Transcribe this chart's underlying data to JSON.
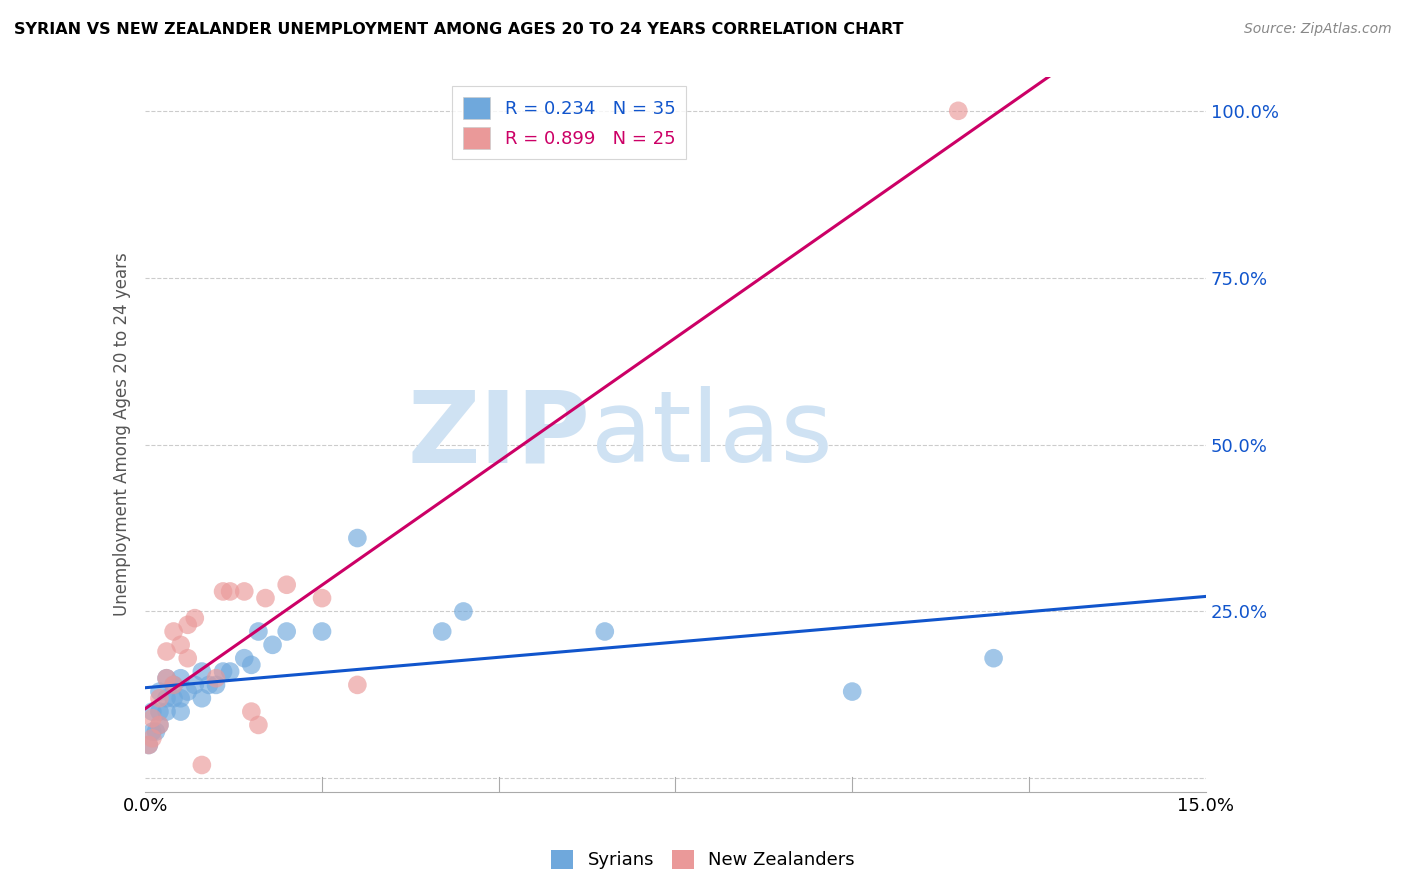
{
  "title": "SYRIAN VS NEW ZEALANDER UNEMPLOYMENT AMONG AGES 20 TO 24 YEARS CORRELATION CHART",
  "source": "Source: ZipAtlas.com",
  "ylabel": "Unemployment Among Ages 20 to 24 years",
  "xlim": [
    0.0,
    0.15
  ],
  "ylim": [
    -0.02,
    1.05
  ],
  "yticks": [
    0.0,
    0.25,
    0.5,
    0.75,
    1.0
  ],
  "ytick_labels": [
    "",
    "25.0%",
    "50.0%",
    "75.0%",
    "100.0%"
  ],
  "xtick_labels": [
    "0.0%",
    "15.0%"
  ],
  "xtick_positions": [
    0.0,
    0.15
  ],
  "minor_xticks": [
    0.025,
    0.05,
    0.075,
    0.1,
    0.125
  ],
  "legend_syrian_R": "R = 0.234",
  "legend_syrian_N": "N = 35",
  "legend_nz_R": "R = 0.899",
  "legend_nz_N": "N = 25",
  "syrian_color": "#6fa8dc",
  "nz_color": "#ea9999",
  "syrian_line_color": "#1155cc",
  "nz_line_color": "#cc0066",
  "watermark_zip": "ZIP",
  "watermark_atlas": "atlas",
  "watermark_color": "#cfe2f3",
  "syrian_x": [
    0.0005,
    0.001,
    0.001,
    0.0015,
    0.002,
    0.002,
    0.002,
    0.003,
    0.003,
    0.003,
    0.004,
    0.004,
    0.005,
    0.005,
    0.005,
    0.006,
    0.007,
    0.008,
    0.008,
    0.009,
    0.01,
    0.011,
    0.012,
    0.014,
    0.015,
    0.016,
    0.018,
    0.02,
    0.025,
    0.03,
    0.042,
    0.045,
    0.065,
    0.1,
    0.12
  ],
  "syrian_y": [
    0.05,
    0.07,
    0.1,
    0.07,
    0.08,
    0.1,
    0.13,
    0.1,
    0.12,
    0.15,
    0.12,
    0.14,
    0.1,
    0.12,
    0.15,
    0.13,
    0.14,
    0.12,
    0.16,
    0.14,
    0.14,
    0.16,
    0.16,
    0.18,
    0.17,
    0.22,
    0.2,
    0.22,
    0.22,
    0.36,
    0.22,
    0.25,
    0.22,
    0.13,
    0.18
  ],
  "nz_x": [
    0.0005,
    0.001,
    0.001,
    0.002,
    0.002,
    0.003,
    0.003,
    0.004,
    0.004,
    0.005,
    0.006,
    0.006,
    0.007,
    0.008,
    0.01,
    0.011,
    0.012,
    0.014,
    0.015,
    0.016,
    0.017,
    0.02,
    0.025,
    0.03,
    0.115
  ],
  "nz_y": [
    0.05,
    0.06,
    0.09,
    0.08,
    0.12,
    0.15,
    0.19,
    0.14,
    0.22,
    0.2,
    0.18,
    0.23,
    0.24,
    0.02,
    0.15,
    0.28,
    0.28,
    0.28,
    0.1,
    0.08,
    0.27,
    0.29,
    0.27,
    0.14,
    1.0
  ],
  "syrian_trend_x": [
    0.0,
    0.15
  ],
  "nz_trend_x": [
    0.0,
    0.15
  ]
}
